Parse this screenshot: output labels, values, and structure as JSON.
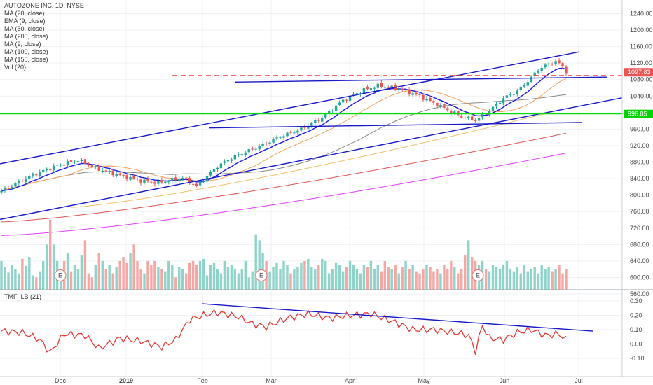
{
  "header": {
    "title": "AUTOZONE INC, 1D, NYSE",
    "indicators": [
      "MA (20, close)",
      "EMA (9, close)",
      "MA (50, close)",
      "MA (200, close)",
      "MA (9, close)",
      "MA (100, close)",
      "MA (150, close)",
      "Vol (20)"
    ]
  },
  "tmf": {
    "label": "TMF_LB (21)"
  },
  "chart_data": {
    "type": "candlestick",
    "title": "AUTOZONE INC, 1D, NYSE",
    "x_ticks": [
      "Dec",
      "2019",
      "Feb",
      "Mar",
      "Apr",
      "May",
      "Jun",
      "Jul"
    ],
    "price_axis": {
      "ticks": [
        "1240.00",
        "1200.00",
        "1160.00",
        "1120.00",
        "1080.00",
        "1040.00",
        "1000.00",
        "960.00",
        "920.00",
        "880.00",
        "840.00",
        "800.00",
        "760.00",
        "720.00",
        "680.00",
        "640.00",
        "600.00",
        "560.00"
      ],
      "range": [
        560,
        1260
      ]
    },
    "tmf_axis": {
      "ticks": [
        "0.30",
        "0.20",
        "0.10",
        "0.00",
        "-0.10"
      ],
      "range": [
        -0.15,
        0.33
      ]
    },
    "last_price": "1097.83",
    "support_level": "996.85",
    "earnings_markers": [
      "E",
      "E",
      "E"
    ],
    "colors": {
      "up": "#26a69a",
      "down": "#ef5350",
      "trendline": "#1818c8",
      "support": "#00e000",
      "resistance": "#e53935",
      "ema9": "#1a1ae6",
      "ma20": "#f5a05a",
      "ma50": "#888888",
      "ma100": "#f4c06b",
      "ma150": "#e05555",
      "ma200": "#e040fb",
      "tmf": "#e53935"
    },
    "ohlc_anchors": [
      [
        0,
        810
      ],
      [
        8,
        845
      ],
      [
        16,
        872
      ],
      [
        22,
        885
      ],
      [
        28,
        862
      ],
      [
        34,
        848
      ],
      [
        40,
        835
      ],
      [
        45,
        830
      ],
      [
        52,
        842
      ],
      [
        56,
        822
      ],
      [
        62,
        870
      ],
      [
        66,
        890
      ],
      [
        70,
        905
      ],
      [
        74,
        918
      ],
      [
        80,
        942
      ],
      [
        86,
        960
      ],
      [
        92,
        988
      ],
      [
        98,
        1030
      ],
      [
        104,
        1055
      ],
      [
        108,
        1065
      ],
      [
        114,
        1058
      ],
      [
        120,
        1040
      ],
      [
        126,
        1015
      ],
      [
        132,
        990
      ],
      [
        136,
        982
      ],
      [
        140,
        1005
      ],
      [
        144,
        1035
      ],
      [
        148,
        1052
      ],
      [
        150,
        1068
      ],
      [
        152,
        1085
      ],
      [
        154,
        1105
      ],
      [
        157,
        1118
      ],
      [
        159,
        1124
      ],
      [
        161,
        1112
      ],
      [
        162,
        1097.83
      ]
    ],
    "tmf_anchors": [
      [
        0,
        0.09
      ],
      [
        6,
        0.08
      ],
      [
        11,
        0.03
      ],
      [
        14,
        -0.06
      ],
      [
        18,
        0.07
      ],
      [
        24,
        0.06
      ],
      [
        28,
        -0.03
      ],
      [
        34,
        0.04
      ],
      [
        40,
        0.02
      ],
      [
        46,
        -0.02
      ],
      [
        50,
        0.03
      ],
      [
        54,
        0.17
      ],
      [
        58,
        0.2
      ],
      [
        62,
        0.22
      ],
      [
        68,
        0.19
      ],
      [
        72,
        0.14
      ],
      [
        76,
        0.12
      ],
      [
        82,
        0.18
      ],
      [
        88,
        0.21
      ],
      [
        94,
        0.18
      ],
      [
        100,
        0.2
      ],
      [
        106,
        0.21
      ],
      [
        112,
        0.16
      ],
      [
        118,
        0.1
      ],
      [
        124,
        0.1
      ],
      [
        130,
        0.08
      ],
      [
        134,
        0.06
      ],
      [
        136,
        -0.05
      ],
      [
        138,
        0.13
      ],
      [
        140,
        0.04
      ],
      [
        144,
        0.03
      ],
      [
        148,
        0.08
      ],
      [
        152,
        0.1
      ],
      [
        156,
        0.06
      ],
      [
        160,
        0.07
      ],
      [
        162,
        0.03
      ]
    ],
    "volume": [
      {
        "start": 0,
        "end": 13,
        "values": [
          640,
          625,
          612,
          630,
          620,
          610,
          645,
          628,
          650,
          605,
          600,
          615,
          640,
          680
        ]
      },
      {
        "start": 14,
        "end": 17,
        "values": [
          740,
          680,
          640,
          620
        ]
      },
      {
        "start": 18,
        "end": 40,
        "values": [
          640,
          660,
          615,
          630,
          620,
          655,
          690,
          610,
          600,
          630,
          660,
          640,
          620,
          630,
          610,
          625,
          640,
          650,
          635,
          660,
          680,
          640,
          620
        ]
      },
      {
        "start": 41,
        "end": 72,
        "values": [
          610,
          640,
          630,
          640,
          625,
          620,
          615,
          640,
          630,
          600,
          625,
          620,
          610,
          635,
          640,
          630,
          640,
          645,
          605,
          630,
          635,
          620,
          610,
          640,
          625,
          630,
          620,
          610,
          620,
          640,
          600,
          615
        ]
      },
      {
        "start": 73,
        "end": 76,
        "values": [
          705,
          690,
          660,
          640
        ]
      },
      {
        "start": 77,
        "end": 132,
        "values": [
          615,
          625,
          635,
          620,
          640,
          630,
          610,
          620,
          625,
          635,
          640,
          645,
          625,
          620,
          630,
          645,
          640,
          610,
          620,
          635,
          630,
          615,
          625,
          640,
          630,
          620,
          610,
          630,
          625,
          640,
          620,
          630,
          615,
          640,
          625,
          620,
          630,
          610,
          625,
          640,
          620,
          630,
          615,
          610,
          620,
          630,
          625,
          615,
          620,
          610,
          630,
          620,
          640,
          625,
          610,
          620
        ]
      },
      {
        "start": 133,
        "end": 137,
        "values": [
          655,
          690,
          650,
          640,
          630
        ]
      },
      {
        "start": 138,
        "end": 162,
        "values": [
          640,
          620,
          615,
          630,
          625,
          620,
          630,
          640,
          620,
          615,
          625,
          610,
          630,
          615,
          620,
          625,
          610,
          630,
          620,
          625,
          615,
          620,
          630,
          610,
          620
        ]
      }
    ]
  }
}
